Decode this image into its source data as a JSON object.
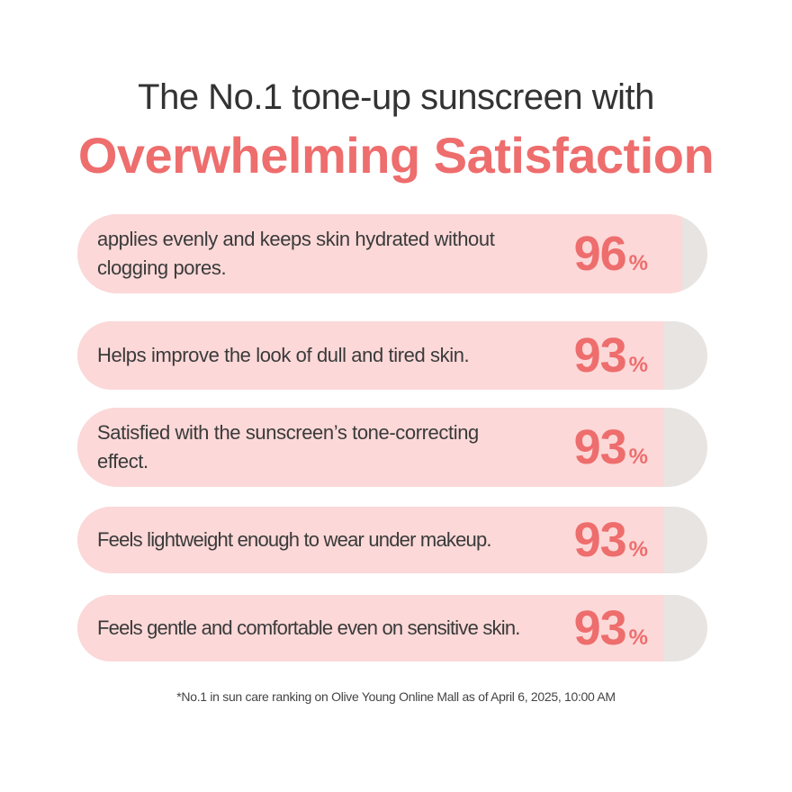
{
  "header": {
    "line1": "The No.1 tone-up sunscreen with",
    "line2": "Overwhelming Satisfaction"
  },
  "stats": [
    {
      "text": "applies evenly and keeps skin hydrated without clogging pores.",
      "value": "96",
      "percent": 96,
      "unit": "%"
    },
    {
      "text": "Helps improve the look of dull and tired skin.",
      "value": "93",
      "percent": 93,
      "unit": "%"
    },
    {
      "text": "Satisfied with the sunscreen’s tone-correcting effect.",
      "value": "93",
      "percent": 93,
      "unit": "%"
    },
    {
      "text": "Feels lightweight enough to wear under makeup.",
      "value": "93",
      "percent": 93,
      "unit": "%"
    },
    {
      "text": "Feels gentle and comfortable even on sensitive skin.",
      "value": "93",
      "percent": 93,
      "unit": "%"
    }
  ],
  "footnote": "*No.1 in sun care ranking on Olive Young Online Mall  as of April 6, 2025, 10:00 AM",
  "colors": {
    "accent": "#ee6d6d",
    "fill": "#fcd8d8",
    "track": "#e8e4e1",
    "text": "#333333"
  }
}
